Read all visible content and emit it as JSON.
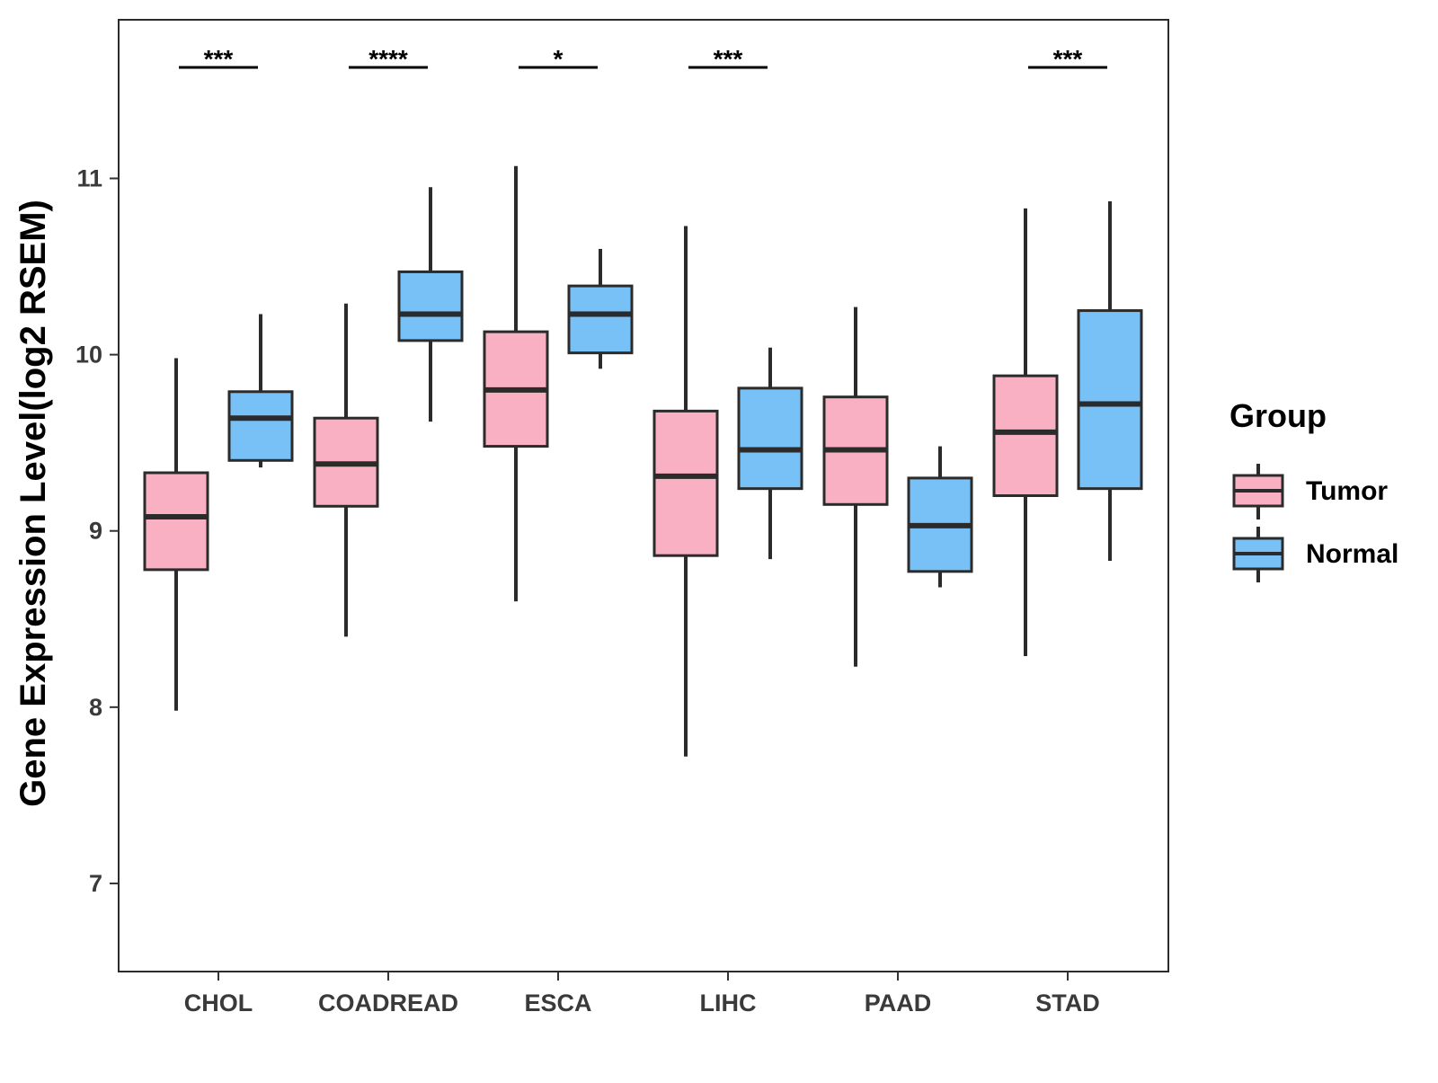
{
  "chart_data": {
    "type": "boxplot",
    "title": "",
    "xlabel": "",
    "ylabel": "Gene Expression Level(log2 RSEM)",
    "ylim": [
      6.5,
      11.9
    ],
    "yticks": [
      7,
      8,
      9,
      10,
      11
    ],
    "categories": [
      "CHOL",
      "COADREAD",
      "ESCA",
      "LIHC",
      "PAAD",
      "STAD"
    ],
    "legend": {
      "title": "Group",
      "position": "right"
    },
    "grid": false,
    "series": [
      {
        "name": "Tumor",
        "color": "#F9B0C3",
        "boxes": [
          {
            "min": 7.98,
            "q1": 8.78,
            "median": 9.08,
            "q3": 9.33,
            "max": 9.98
          },
          {
            "min": 8.4,
            "q1": 9.14,
            "median": 9.38,
            "q3": 9.64,
            "max": 10.29
          },
          {
            "min": 8.6,
            "q1": 9.48,
            "median": 9.8,
            "q3": 10.13,
            "max": 11.07
          },
          {
            "min": 7.72,
            "q1": 8.86,
            "median": 9.31,
            "q3": 9.68,
            "max": 10.73
          },
          {
            "min": 8.23,
            "q1": 9.15,
            "median": 9.46,
            "q3": 9.76,
            "max": 10.27
          },
          {
            "min": 8.29,
            "q1": 9.2,
            "median": 9.56,
            "q3": 9.88,
            "max": 10.83
          }
        ]
      },
      {
        "name": "Normal",
        "color": "#78C1F7",
        "boxes": [
          {
            "min": 9.36,
            "q1": 9.4,
            "median": 9.64,
            "q3": 9.79,
            "max": 10.23
          },
          {
            "min": 9.62,
            "q1": 10.08,
            "median": 10.23,
            "q3": 10.47,
            "max": 10.95
          },
          {
            "min": 9.92,
            "q1": 10.01,
            "median": 10.23,
            "q3": 10.39,
            "max": 10.6
          },
          {
            "min": 8.84,
            "q1": 9.24,
            "median": 9.46,
            "q3": 9.81,
            "max": 10.04
          },
          {
            "min": 8.68,
            "q1": 8.77,
            "median": 9.03,
            "q3": 9.3,
            "max": 9.48
          },
          {
            "min": 8.83,
            "q1": 9.24,
            "median": 9.72,
            "q3": 10.25,
            "max": 10.87
          }
        ]
      }
    ],
    "significance": [
      {
        "category": "CHOL",
        "label": "***"
      },
      {
        "category": "COADREAD",
        "label": "****"
      },
      {
        "category": "ESCA",
        "label": "*"
      },
      {
        "category": "LIHC",
        "label": "***"
      },
      {
        "category": "PAAD",
        "label": ""
      },
      {
        "category": "STAD",
        "label": "***"
      }
    ]
  }
}
